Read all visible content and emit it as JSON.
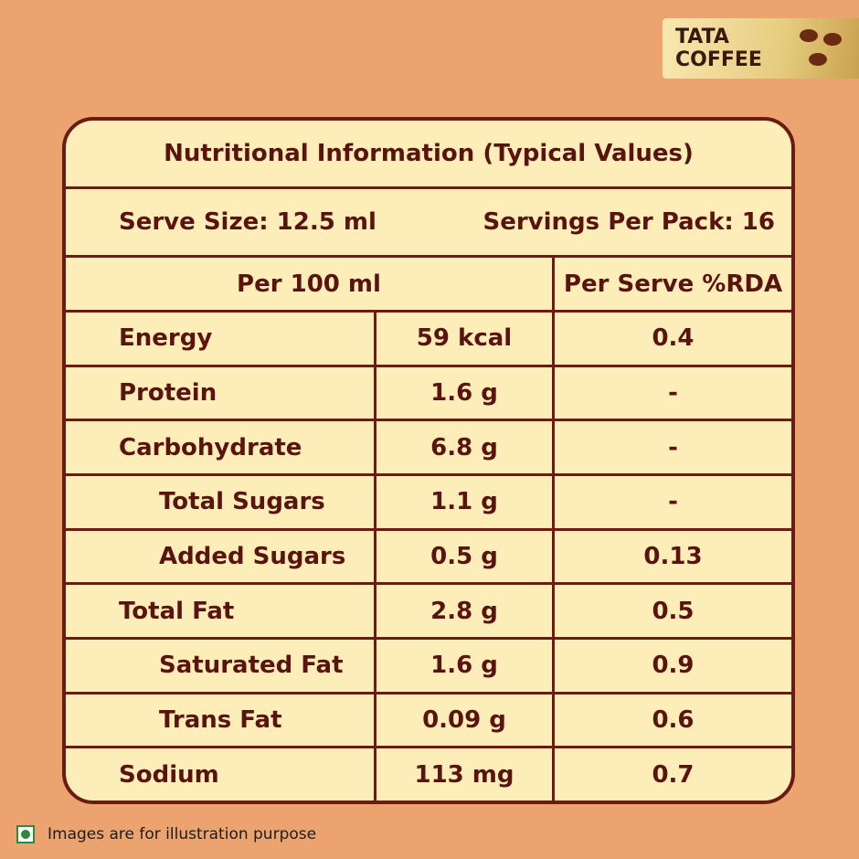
{
  "brand": {
    "line1": "TATA",
    "line2": "COFFEE"
  },
  "header": {
    "title": "Nutritional Information (Typical Values)",
    "serve_size": "Serve Size: 12.5 ml",
    "servings": "Servings Per Pack: 16"
  },
  "table": {
    "columns": [
      "Per 100 ml",
      "Per Serve %RDA"
    ],
    "rows": [
      [
        "Energy",
        "59 kcal",
        "0.4"
      ],
      [
        "Protein",
        "1.6 g",
        "-"
      ],
      [
        "Carbohydrate",
        "6.8 g",
        "-"
      ],
      [
        "Total Sugars",
        "1.1 g",
        "-"
      ],
      [
        "Added Sugars",
        "0.5 g",
        "0.13"
      ],
      [
        "Total Fat",
        "2.8 g",
        "0.5"
      ],
      [
        "Saturated Fat",
        "1.6 g",
        "0.9"
      ],
      [
        "Trans Fat",
        "0.09 g",
        "0.6"
      ],
      [
        "Sodium",
        "113 mg",
        "0.7"
      ]
    ]
  },
  "footer": {
    "note": "Images are for illustration purpose"
  }
}
